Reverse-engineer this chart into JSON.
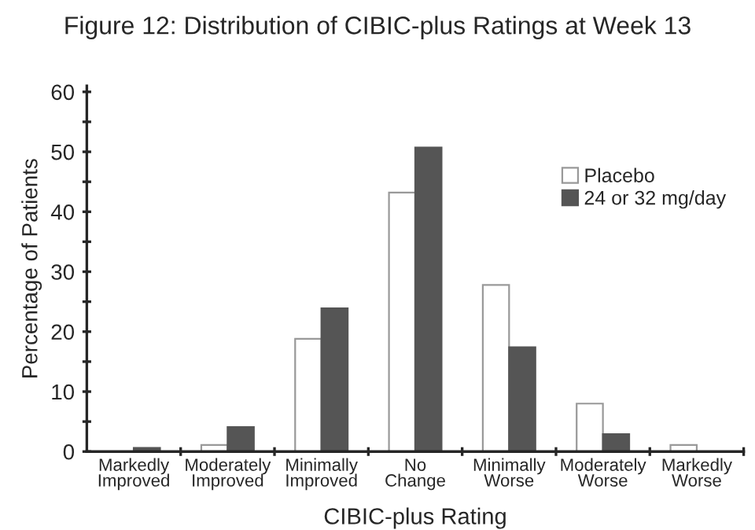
{
  "chart_data": {
    "type": "bar",
    "title": "Figure 12: Distribution of CIBIC-plus Ratings at Week 13",
    "xlabel": "CIBIC-plus Rating",
    "ylabel": "Percentage of Patients",
    "categories": [
      "Markedly\nImproved",
      "Moderately\nImproved",
      "Minimally\nImproved",
      "No\nChange",
      "Minimally\nWorse",
      "Moderately\nWorse",
      "Markedly\nWorse"
    ],
    "series": [
      {
        "name": "Placebo",
        "color": "#ffffff",
        "values": [
          null,
          1.1,
          18.8,
          43.2,
          27.8,
          8.0,
          1.1
        ]
      },
      {
        "name": "24 or 32 mg/day",
        "color": "#555555",
        "values": [
          0.6,
          4.1,
          23.9,
          50.7,
          17.4,
          2.9,
          null
        ]
      }
    ],
    "ylim": [
      0,
      61
    ],
    "yticks": [
      0,
      {
        "value": 5,
        "label": null
      },
      10,
      {
        "value": 15,
        "label": null
      },
      20,
      {
        "value": 25,
        "label": null
      },
      30,
      {
        "value": 35,
        "label": null
      },
      40,
      {
        "value": 45,
        "label": null
      },
      50,
      {
        "value": 55,
        "label": null
      },
      60
    ],
    "grid": false,
    "legend": "right"
  }
}
